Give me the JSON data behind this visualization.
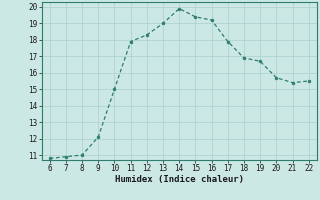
{
  "x": [
    6,
    7,
    8,
    9,
    10,
    11,
    12,
    13,
    14,
    15,
    16,
    17,
    18,
    19,
    20,
    21,
    22
  ],
  "y": [
    10.8,
    10.9,
    11.0,
    12.1,
    15.0,
    17.9,
    18.3,
    19.0,
    19.9,
    19.4,
    19.2,
    17.9,
    16.9,
    16.7,
    15.7,
    15.4,
    15.5
  ],
  "xlabel": "Humidex (Indice chaleur)",
  "xlim": [
    5.5,
    22.5
  ],
  "ylim_bottom": 10.7,
  "ylim_top": 20.3,
  "yticks": [
    11,
    12,
    13,
    14,
    15,
    16,
    17,
    18,
    19,
    20
  ],
  "xticks": [
    6,
    7,
    8,
    9,
    10,
    11,
    12,
    13,
    14,
    15,
    16,
    17,
    18,
    19,
    20,
    21,
    22
  ],
  "line_color": "#2e7d6e",
  "marker_color": "#2e7d6e",
  "bg_color": "#cce8e4",
  "grid_color": "#b0d4d0",
  "tick_color": "#1a1a1a",
  "spine_color": "#2e7d6e"
}
